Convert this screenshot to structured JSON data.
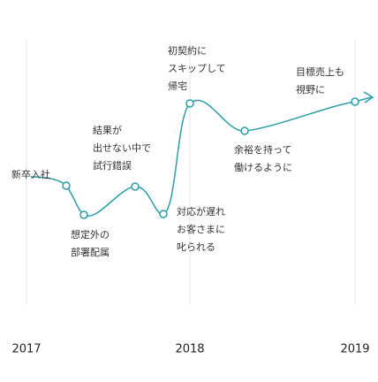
{
  "years": [
    "2017",
    "2018",
    "2019"
  ],
  "nodes": [
    {
      "lines": [
        "新卒入社"
      ]
    },
    {
      "lines": [
        "想定外の",
        "部署配属"
      ]
    },
    {
      "lines": [
        "結果が",
        "出せない中で",
        "試行錯誤"
      ]
    },
    {
      "lines": [
        "対応が遅れ",
        "お客さまに",
        "叱られる"
      ]
    },
    {
      "lines": [
        "初契約に",
        "スキップして",
        "帰宅"
      ]
    },
    {
      "lines": [
        "余裕を持って",
        "働けるように"
      ]
    },
    {
      "lines": [
        "目標売上も",
        "視野に"
      ]
    }
  ]
}
